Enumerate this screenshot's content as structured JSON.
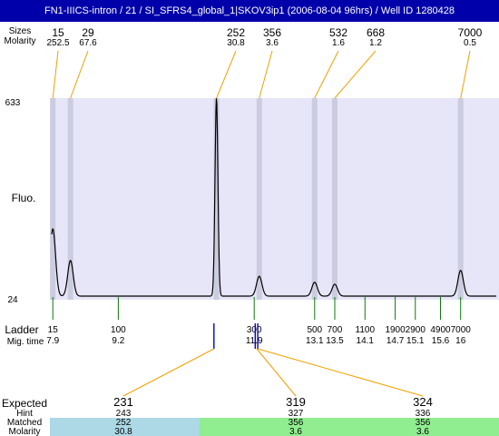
{
  "header": {
    "title": "FN1-IIICS-intron / 21 / SI_SFRS4_global_1|SKOV3ip1 (2006-08-04 96hrs) / Well ID 1280428"
  },
  "colors": {
    "header_bg": "#0000aa",
    "plot_bg": "#e6e6f8",
    "band": "#cccce0",
    "leader": "#f0a000",
    "ladder_tick": "#0a7a0a",
    "expected_red": "#dd0000",
    "ladder_blue": "#0000cc",
    "matched_blue": "#add8e6",
    "matched_green": "#90ee90"
  },
  "chart_data": {
    "type": "line",
    "peaks": {
      "row_labels": [
        "Sizes",
        "Molarity"
      ],
      "sizes": [
        "15",
        "29",
        "252",
        "356",
        "532",
        "668",
        "7000"
      ],
      "molarity": [
        "252.5",
        "67.6",
        "30.8",
        "3.6",
        "1.6",
        "1.2",
        "0.5"
      ],
      "mig_times": [
        7.9,
        8.25,
        11.15,
        12.0,
        13.1,
        13.5,
        16.0
      ],
      "heights": [
        0.34,
        0.18,
        1.0,
        0.1,
        0.07,
        0.06,
        0.13
      ]
    },
    "y_axis": {
      "label": "Fluo.",
      "ticks": [
        "633",
        "24"
      ],
      "ylim": [
        24,
        633
      ]
    },
    "ladder": {
      "labels": [
        "Ladder",
        "Mig. time"
      ],
      "sizes": [
        "15",
        "100",
        "300",
        "500",
        "700",
        "1100",
        "1900",
        "2900",
        "4900",
        "7000"
      ],
      "mig_times": [
        "7.9",
        "9.2",
        "11.9",
        "13.1",
        "13.5",
        "14.1",
        "14.7",
        "15.1",
        "15.6",
        "16"
      ]
    },
    "markers": {
      "blue_mig_times": [
        11.1,
        11.92,
        11.97
      ]
    },
    "expected": {
      "labels": [
        "Expected",
        "Hint",
        "Matched",
        "Molarity"
      ],
      "items": [
        {
          "expected": "231",
          "hint": "243",
          "matched": "252",
          "molarity": "30.8",
          "highlight": true,
          "match_color": "blue",
          "mig_time": 11.1
        },
        {
          "expected": "319",
          "hint": "327",
          "matched": "356",
          "molarity": "3.6",
          "highlight": true,
          "match_color": "green",
          "mig_time": 11.95
        },
        {
          "expected": "324",
          "hint": "336",
          "matched": "356",
          "molarity": "3.6",
          "highlight": false,
          "match_color": "green",
          "mig_time": 11.97
        }
      ]
    }
  }
}
